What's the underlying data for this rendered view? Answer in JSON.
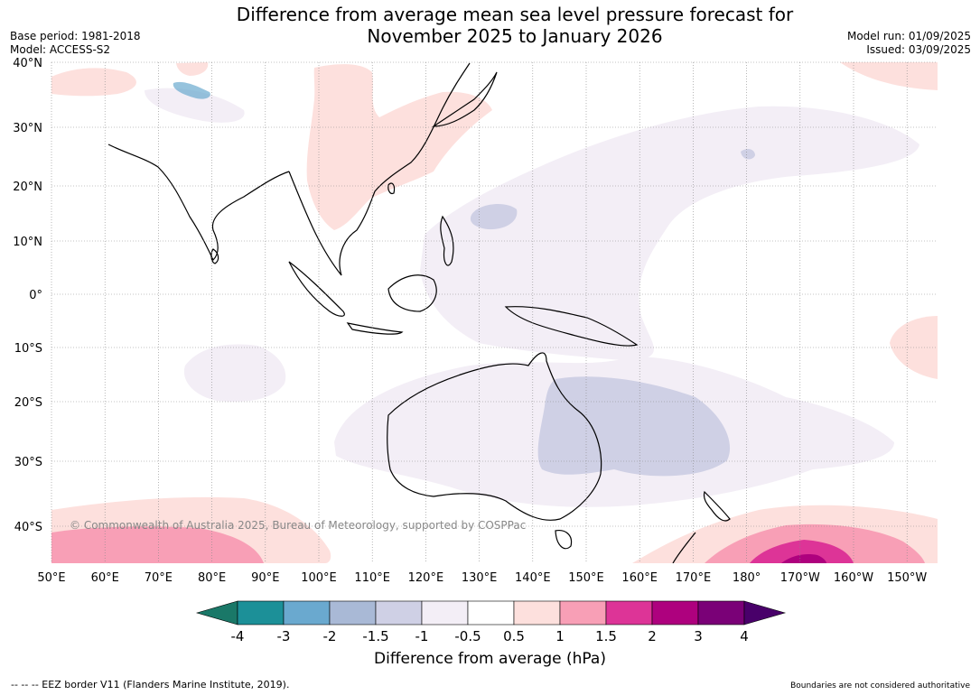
{
  "title_line1": "Difference from average mean sea level pressure forecast for",
  "title_line2": "November 2025 to January 2026",
  "base_period": "Base period: 1981-2018",
  "model": "Model: ACCESS-S2",
  "model_run": "Model run: 01/09/2025",
  "issued": "Issued: 03/09/2025",
  "copyright": "© Commonwealth of Australia 2025, Bureau of Meteorology, supported by COSPPac",
  "lat_labels": [
    "40°N",
    "30°N",
    "20°N",
    "10°N",
    "0°",
    "10°S",
    "20°S",
    "30°S",
    "40°S"
  ],
  "lon_labels": [
    "50°E",
    "60°E",
    "70°E",
    "80°E",
    "90°E",
    "100°E",
    "110°E",
    "120°E",
    "130°E",
    "140°E",
    "150°E",
    "160°E",
    "170°E",
    "180°",
    "170°W",
    "160°W",
    "150°W"
  ],
  "colorbar": {
    "ticks": [
      "-4",
      "-3",
      "-2",
      "-1.5",
      "-1",
      "-0.5",
      "0.5",
      "1",
      "1.5",
      "2",
      "3",
      "4"
    ],
    "colors": [
      "#1a7868",
      "#1c9098",
      "#6aa9cf",
      "#a9b9d6",
      "#cfd0e5",
      "#f3eef6",
      "#ffffff",
      "#fde0dd",
      "#f89fb6",
      "#dd3497",
      "#ae017e",
      "#7a0177",
      "#49006a"
    ],
    "label": "Difference from average (hPa)"
  },
  "footer_left": "--  --  -- EEZ border V11 (Flanders Marine Institute, 2019).",
  "footer_right": "Boundaries are not considered authoritative"
}
